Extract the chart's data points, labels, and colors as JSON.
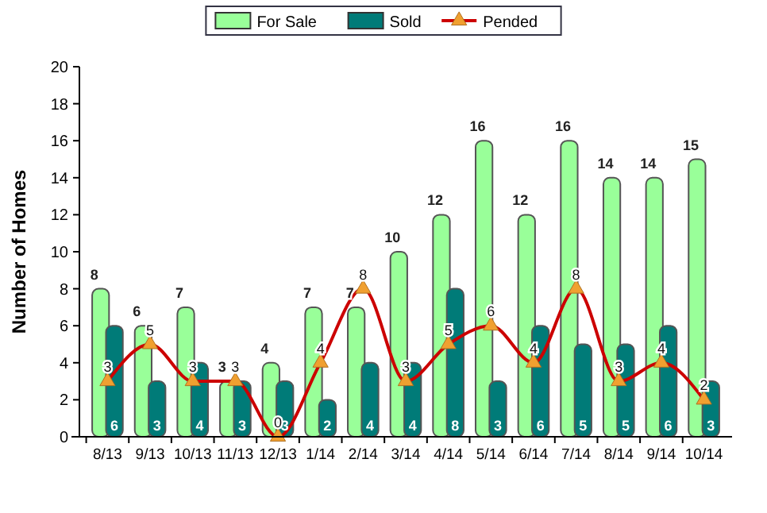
{
  "chart_data": {
    "type": "bar",
    "ylabel": "Number of Homes",
    "categories": [
      "8/13",
      "9/13",
      "10/13",
      "11/13",
      "12/13",
      "1/14",
      "2/14",
      "3/14",
      "4/14",
      "5/14",
      "6/14",
      "7/14",
      "8/14",
      "9/14",
      "10/14"
    ],
    "series": [
      {
        "name": "For Sale",
        "color": "#99ff99",
        "values": [
          8,
          6,
          7,
          3,
          4,
          7,
          7,
          10,
          12,
          16,
          12,
          16,
          14,
          14,
          15
        ]
      },
      {
        "name": "Sold",
        "color": "#007b78",
        "values": [
          6,
          3,
          4,
          3,
          3,
          2,
          4,
          4,
          8,
          3,
          6,
          5,
          5,
          6,
          3
        ]
      },
      {
        "name": "Pended",
        "type": "line",
        "color": "#cc0000",
        "marker": "triangle",
        "values": [
          3,
          5,
          3,
          3,
          0,
          4,
          8,
          3,
          5,
          6,
          4,
          8,
          3,
          4,
          2
        ]
      }
    ],
    "ylim": [
      0,
      20
    ],
    "yticks": [
      0,
      2,
      4,
      6,
      8,
      10,
      12,
      14,
      16,
      18,
      20
    ],
    "grid": false,
    "legend": "top",
    "data_labels": true
  }
}
